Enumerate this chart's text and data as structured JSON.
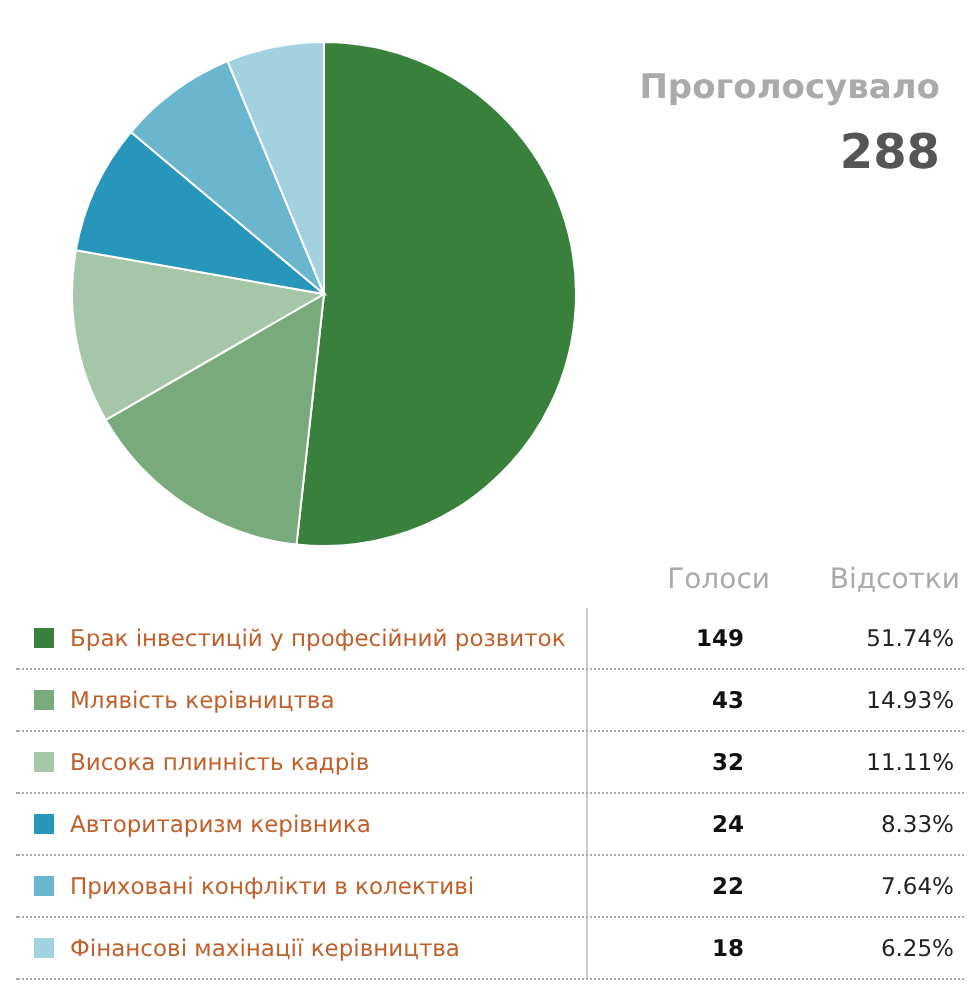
{
  "chart_data": {
    "type": "pie",
    "categories": [
      "Брак інвестицій у професійний розвиток",
      "Млявість керівництва",
      "Висока плинність кадрів",
      "Авторитаризм керівника",
      "Приховані конфлікти в колективі",
      "Фінансові махінації керівництва"
    ],
    "values": [
      51.74,
      14.93,
      11.11,
      8.33,
      7.64,
      6.25
    ],
    "colors": [
      "#38803c",
      "#79aa7c",
      "#a5c7a7",
      "#2896ba",
      "#6bb6cf",
      "#a2d1e0"
    ],
    "value_labels": [
      "51.74%",
      "14.93%",
      "11.11%",
      "8.33%",
      "7.64%",
      "6.25%"
    ],
    "legend": "bottom",
    "annotations": [
      "Проголосувало",
      "288",
      "Голоси",
      "Відсотки",
      "149",
      "43",
      "32",
      "24",
      "22",
      "18"
    ]
  }
}
